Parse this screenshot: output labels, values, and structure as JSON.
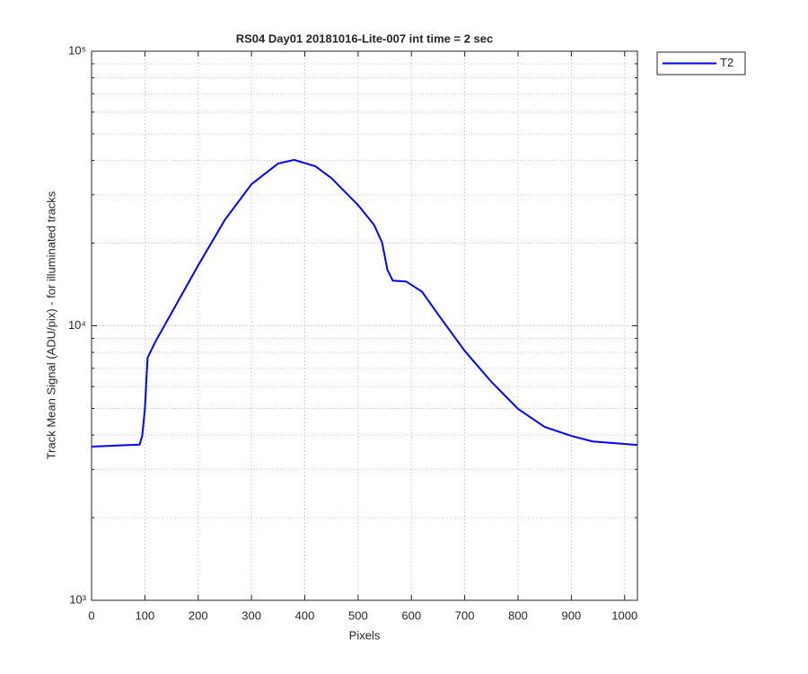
{
  "chart_data": {
    "type": "line",
    "title": "RS04 Day01 20181016-Lite-007 int time = 2 sec",
    "x_label": "Pixels",
    "y_label": "Track Mean Signal (ADU/pix) - for illuminated tracks",
    "xlim": [
      0,
      1024
    ],
    "xticks": [
      0,
      100,
      200,
      300,
      400,
      500,
      600,
      700,
      800,
      900,
      1000
    ],
    "ylim": [
      1000,
      100000
    ],
    "yticks": [
      {
        "value": 1000,
        "label": "10³"
      },
      {
        "value": 10000,
        "label": "10⁴"
      },
      {
        "value": 100000,
        "label": "10⁵"
      }
    ],
    "y_log": true,
    "grid": true,
    "minor_grid": true,
    "legend": "outside-top-right",
    "x": [
      0,
      90,
      95,
      100,
      105,
      120,
      150,
      200,
      250,
      300,
      350,
      380,
      420,
      450,
      470,
      500,
      530,
      545,
      555,
      565,
      590,
      620,
      650,
      700,
      750,
      800,
      850,
      900,
      940,
      1024
    ],
    "series": [
      {
        "name": "T2",
        "color": "#0000ff",
        "values": [
          3630,
          3690,
          3970,
          4980,
          7640,
          8770,
          11130,
          16600,
          24300,
          32800,
          39000,
          40200,
          38100,
          34500,
          31500,
          27500,
          23300,
          20100,
          16000,
          14600,
          14500,
          13300,
          11000,
          8100,
          6250,
          4980,
          4280,
          3970,
          3790,
          3680
        ]
      }
    ]
  }
}
